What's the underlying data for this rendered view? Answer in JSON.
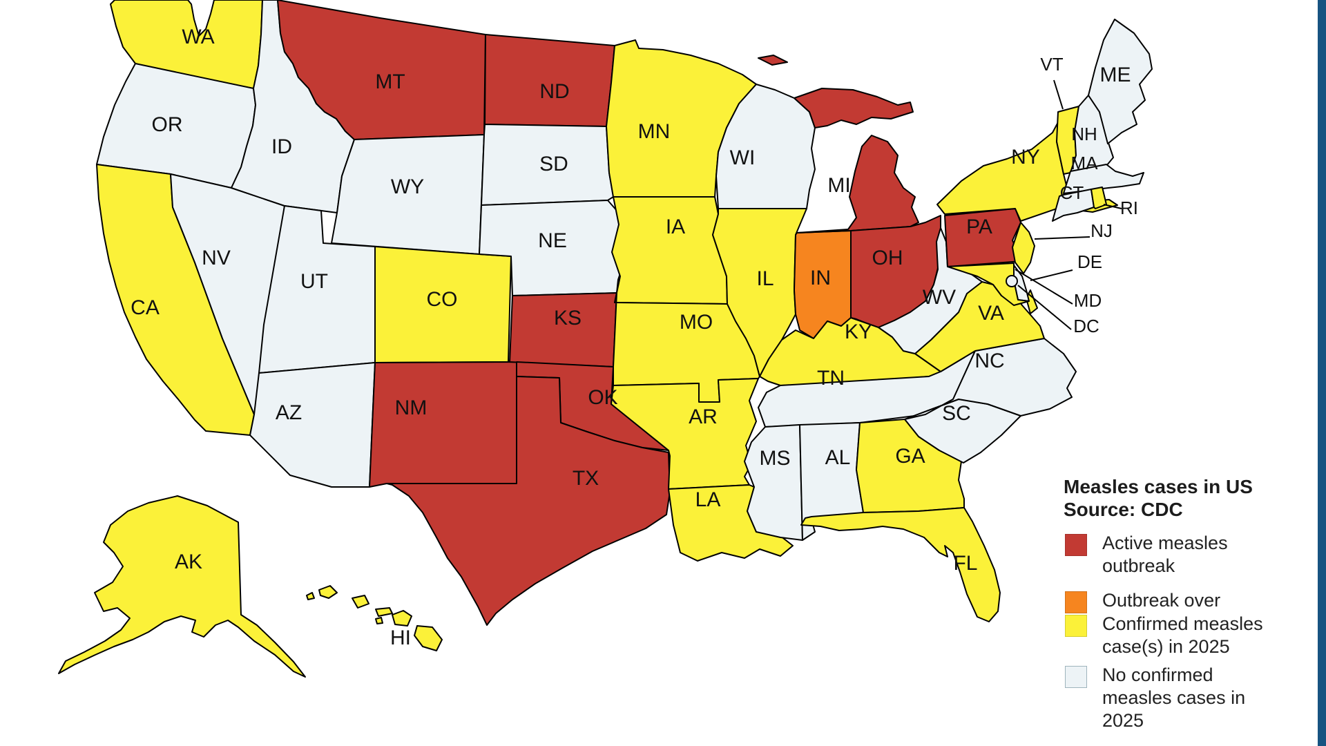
{
  "page": {
    "background": "#ffffff"
  },
  "accent_bar": {
    "color": "#175381"
  },
  "status_colors": {
    "active": "#C23A33",
    "over": "#F6851F",
    "confirmed": "#FBF139",
    "none": "#EDF3F6"
  },
  "legend": {
    "title_line1": "Measles cases in US",
    "title_line2": "Source: CDC",
    "items": [
      {
        "key": "active",
        "label": "Active measles\noutbreak",
        "color": "#C23A33"
      },
      {
        "key": "over",
        "label": "Outbreak over",
        "color": "#F6851F"
      },
      {
        "key": "confirmed",
        "label": "Confirmed measles\ncase(s) in 2025",
        "color": "#FBF139"
      },
      {
        "key": "none",
        "label": "No confirmed\nmeasles cases in\n2025",
        "color": "#EDF3F6",
        "border": "#9FB4BC"
      }
    ]
  },
  "map": {
    "stroke": "#000000",
    "label_color": "#111111",
    "states": [
      {
        "abbr": "WA",
        "status": "confirmed"
      },
      {
        "abbr": "OR",
        "status": "none"
      },
      {
        "abbr": "CA",
        "status": "confirmed"
      },
      {
        "abbr": "NV",
        "status": "none"
      },
      {
        "abbr": "ID",
        "status": "none"
      },
      {
        "abbr": "MT",
        "status": "active"
      },
      {
        "abbr": "WY",
        "status": "none"
      },
      {
        "abbr": "UT",
        "status": "none"
      },
      {
        "abbr": "CO",
        "status": "confirmed"
      },
      {
        "abbr": "AZ",
        "status": "none"
      },
      {
        "abbr": "NM",
        "status": "active"
      },
      {
        "abbr": "ND",
        "status": "active"
      },
      {
        "abbr": "SD",
        "status": "none"
      },
      {
        "abbr": "NE",
        "status": "none"
      },
      {
        "abbr": "KS",
        "status": "active"
      },
      {
        "abbr": "OK",
        "status": "active"
      },
      {
        "abbr": "TX",
        "status": "active"
      },
      {
        "abbr": "MN",
        "status": "confirmed"
      },
      {
        "abbr": "IA",
        "status": "confirmed"
      },
      {
        "abbr": "MO",
        "status": "confirmed"
      },
      {
        "abbr": "AR",
        "status": "confirmed"
      },
      {
        "abbr": "LA",
        "status": "confirmed"
      },
      {
        "abbr": "WI",
        "status": "none"
      },
      {
        "abbr": "IL",
        "status": "confirmed"
      },
      {
        "abbr": "IN",
        "status": "over"
      },
      {
        "abbr": "MI",
        "status": "active"
      },
      {
        "abbr": "OH",
        "status": "active"
      },
      {
        "abbr": "KY",
        "status": "confirmed"
      },
      {
        "abbr": "TN",
        "status": "none"
      },
      {
        "abbr": "MS",
        "status": "none"
      },
      {
        "abbr": "AL",
        "status": "none"
      },
      {
        "abbr": "GA",
        "status": "confirmed"
      },
      {
        "abbr": "FL",
        "status": "confirmed"
      },
      {
        "abbr": "SC",
        "status": "none"
      },
      {
        "abbr": "NC",
        "status": "none"
      },
      {
        "abbr": "VA",
        "status": "confirmed"
      },
      {
        "abbr": "WV",
        "status": "none"
      },
      {
        "abbr": "PA",
        "status": "active"
      },
      {
        "abbr": "NY",
        "status": "confirmed"
      },
      {
        "abbr": "VT",
        "status": "confirmed"
      },
      {
        "abbr": "NH",
        "status": "none"
      },
      {
        "abbr": "MA",
        "status": "none"
      },
      {
        "abbr": "CT",
        "status": "none"
      },
      {
        "abbr": "RI",
        "status": "confirmed"
      },
      {
        "abbr": "NJ",
        "status": "confirmed"
      },
      {
        "abbr": "DE",
        "status": "none"
      },
      {
        "abbr": "MD",
        "status": "confirmed"
      },
      {
        "abbr": "DC",
        "status": "none"
      },
      {
        "abbr": "ME",
        "status": "none"
      },
      {
        "abbr": "AK",
        "status": "confirmed"
      },
      {
        "abbr": "HI",
        "status": "confirmed"
      }
    ],
    "callout_labels": [
      "VT",
      "RI",
      "NJ",
      "DE",
      "MD",
      "DC"
    ]
  }
}
